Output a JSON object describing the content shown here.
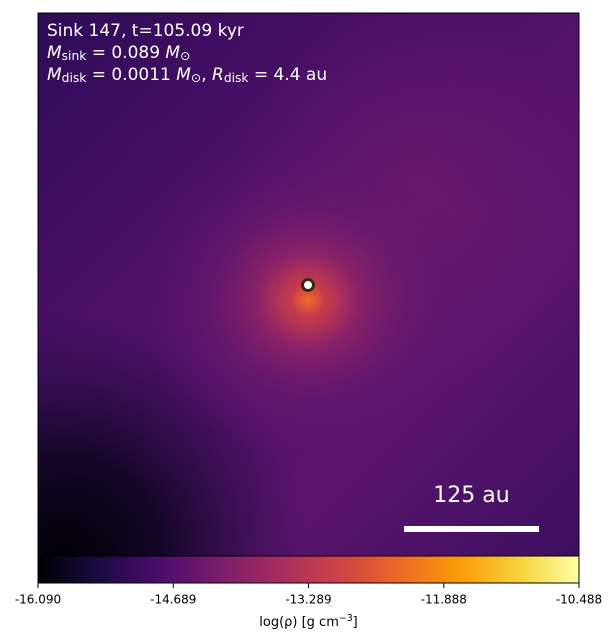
{
  "chart_data": {
    "type": "image",
    "annotations": [
      [
        {
          "text": "Sink 147, t=105.09 kyr"
        }
      ],
      [
        {
          "text": "M",
          "italic": true
        },
        {
          "text": "sink",
          "sub": true
        },
        {
          "text": " = 0.089 "
        },
        {
          "text": "M",
          "italic": true
        },
        {
          "text": "⊙",
          "sub": true
        }
      ],
      [
        {
          "text": "M",
          "italic": true
        },
        {
          "text": "disk",
          "sub": true
        },
        {
          "text": " = 0.0011 "
        },
        {
          "text": "M",
          "italic": true
        },
        {
          "text": "⊙",
          "sub": true
        },
        {
          "text": ", "
        },
        {
          "text": "R",
          "italic": true
        },
        {
          "text": "disk",
          "sub": true
        },
        {
          "text": " = 4.4 au"
        }
      ]
    ],
    "scale_bar": {
      "value": 125,
      "label": "125 au"
    },
    "colorbar": {
      "xlim": [
        -16.09,
        -10.488
      ],
      "xticks": [
        {
          "value": -16.09,
          "label": "-16.090"
        },
        {
          "value": -14.689,
          "label": "-14.689"
        },
        {
          "value": -13.289,
          "label": "-13.289"
        },
        {
          "value": -11.888,
          "label": "-11.888"
        },
        {
          "value": -10.488,
          "label": "-10.488"
        }
      ],
      "xlabel": [
        {
          "text": "log(ρ) [g cm"
        },
        {
          "text": "−3",
          "sup": true
        },
        {
          "text": "]"
        }
      ]
    }
  }
}
